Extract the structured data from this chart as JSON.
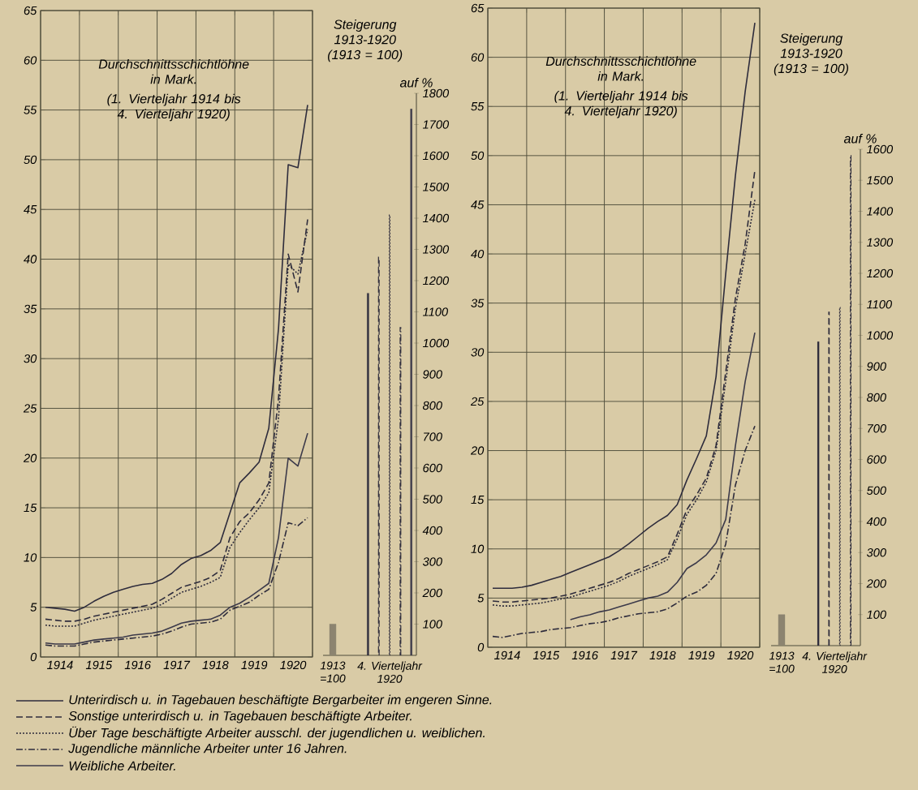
{
  "chart_data": [
    {
      "type": "line",
      "title": "Durchschnittsschichtlöhne in Mark.",
      "subtitle": "(1. Vierteljahr 1914 bis 4. Vierteljahr 1920)",
      "x": [
        1914.125,
        1914.375,
        1914.625,
        1914.875,
        1915.125,
        1915.375,
        1915.625,
        1915.875,
        1916.125,
        1916.375,
        1916.625,
        1916.875,
        1917.125,
        1917.375,
        1917.625,
        1917.875,
        1918.125,
        1918.375,
        1918.625,
        1918.875,
        1919.125,
        1919.375,
        1919.625,
        1919.875,
        1920.125,
        1920.375,
        1920.625,
        1920.875
      ],
      "xlim": [
        1914,
        1921
      ],
      "ylim": [
        0,
        65
      ],
      "xticks": [
        {
          "value": 1914,
          "label": null
        },
        {
          "value": 1915,
          "label": null
        },
        {
          "value": 1916,
          "label": null
        },
        {
          "value": 1917,
          "label": null
        },
        {
          "value": 1918,
          "label": null
        },
        {
          "value": 1919,
          "label": null
        },
        {
          "value": 1920,
          "label": null
        },
        {
          "value": 1921,
          "label": null
        },
        {
          "value": 1914.5,
          "label": "1914"
        },
        {
          "value": 1915.5,
          "label": "1915"
        },
        {
          "value": 1916.5,
          "label": "1916"
        },
        {
          "value": 1917.5,
          "label": "1917"
        },
        {
          "value": 1918.5,
          "label": "1918"
        },
        {
          "value": 1919.5,
          "label": "1919"
        },
        {
          "value": 1920.5,
          "label": "1920"
        }
      ],
      "yticks": [
        0,
        5,
        10,
        15,
        20,
        25,
        30,
        35,
        40,
        45,
        50,
        55,
        60,
        65
      ],
      "grid": true,
      "legend": "bottom",
      "series": [
        {
          "name": "Unterirdisch u. in Tagebauen beschäftigte Bergarbeiter im engeren Sinne.",
          "color": "#2e2c3c",
          "line_style": "solid",
          "values": [
            5.0,
            4.9,
            4.8,
            4.6,
            5.0,
            5.6,
            6.1,
            6.5,
            6.8,
            7.1,
            7.3,
            7.4,
            7.8,
            8.4,
            9.3,
            9.9,
            10.2,
            10.7,
            11.5,
            14.5,
            17.5,
            18.5,
            19.6,
            23.0,
            33.0,
            49.5,
            49.2,
            55.5
          ]
        },
        {
          "name": "Sonstige unterirdisch u. in Tagebauen beschäftigte Arbeiter.",
          "color": "#2e2c3c",
          "line_style": "dashed",
          "values": [
            3.8,
            3.7,
            3.6,
            3.6,
            3.8,
            4.1,
            4.3,
            4.5,
            4.7,
            4.9,
            5.1,
            5.3,
            5.8,
            6.4,
            7.0,
            7.3,
            7.6,
            8.0,
            8.7,
            12.0,
            13.6,
            14.5,
            15.8,
            17.5,
            26.0,
            40.5,
            36.7,
            44.0
          ]
        },
        {
          "name": "Über Tage beschäftigte Arbeiter ausschl. der jugendlichen u. weiblichen.",
          "color": "#2e2c3c",
          "line_style": "dotted",
          "values": [
            3.2,
            3.1,
            3.1,
            3.1,
            3.4,
            3.7,
            3.9,
            4.1,
            4.3,
            4.5,
            4.7,
            4.9,
            5.3,
            5.9,
            6.5,
            6.8,
            7.1,
            7.5,
            8.0,
            11.0,
            12.5,
            13.8,
            15.0,
            16.5,
            24.0,
            39.5,
            38.5,
            43.0
          ]
        },
        {
          "name": "Jugendliche männliche Arbeiter unter 16 Jahren.",
          "color": "#2e2c3c",
          "line_style": "dashdot",
          "values": [
            1.2,
            1.1,
            1.1,
            1.1,
            1.3,
            1.5,
            1.6,
            1.7,
            1.8,
            1.9,
            2.0,
            2.1,
            2.3,
            2.6,
            3.0,
            3.3,
            3.4,
            3.5,
            3.8,
            4.7,
            5.1,
            5.5,
            6.2,
            6.8,
            9.5,
            13.5,
            13.2,
            14.0
          ]
        },
        {
          "name": "Weibliche Arbeiter.",
          "color": "#3c3a4a",
          "line_style": "solid",
          "values": [
            1.4,
            1.3,
            1.3,
            1.3,
            1.5,
            1.7,
            1.8,
            1.9,
            2.0,
            2.2,
            2.3,
            2.4,
            2.6,
            3.0,
            3.4,
            3.6,
            3.7,
            3.8,
            4.2,
            5.0,
            5.4,
            6.0,
            6.7,
            7.4,
            12.0,
            20.0,
            19.2,
            22.5
          ]
        }
      ]
    },
    {
      "type": "bar",
      "title": "Steigerung 1913-1920 (1913 = 100)",
      "ylabel": "auf %",
      "categories": [
        "1913 =100",
        "4. Vierteljahr 1920"
      ],
      "ylim": [
        0,
        1800
      ],
      "yticks": [
        100,
        200,
        300,
        400,
        500,
        600,
        700,
        800,
        900,
        1000,
        1100,
        1200,
        1300,
        1400,
        1500,
        1600,
        1700,
        1800
      ],
      "series": [
        {
          "color": "#8c8470",
          "values": [
            100,
            null
          ]
        },
        {
          "color": "#2e2c3c",
          "line_style": "solid",
          "values": [
            null,
            1160
          ]
        },
        {
          "color": "#2e2c3c",
          "line_style": "dashed",
          "values": [
            null,
            1275
          ]
        },
        {
          "color": "#2e2c3c",
          "line_style": "dotted",
          "values": [
            null,
            1410
          ]
        },
        {
          "color": "#2e2c3c",
          "line_style": "dashdot",
          "values": [
            null,
            1050
          ]
        },
        {
          "color": "#3c3a4a",
          "line_style": "solid",
          "values": [
            null,
            1750
          ]
        }
      ]
    },
    {
      "type": "line",
      "title": "Durchschnittsschichtlöhne in Mark.",
      "subtitle": "(1. Vierteljahr 1914 bis 4. Vierteljahr 1920)",
      "x": [
        1914.125,
        1914.375,
        1914.625,
        1914.875,
        1915.125,
        1915.375,
        1915.625,
        1915.875,
        1916.125,
        1916.375,
        1916.625,
        1916.875,
        1917.125,
        1917.375,
        1917.625,
        1917.875,
        1918.125,
        1918.375,
        1918.625,
        1918.875,
        1919.125,
        1919.375,
        1919.625,
        1919.875,
        1920.125,
        1920.375,
        1920.625,
        1920.875
      ],
      "xlim": [
        1914,
        1921
      ],
      "ylim": [
        0,
        65
      ],
      "xticks": [
        {
          "value": 1914,
          "label": null
        },
        {
          "value": 1915,
          "label": null
        },
        {
          "value": 1916,
          "label": null
        },
        {
          "value": 1917,
          "label": null
        },
        {
          "value": 1918,
          "label": null
        },
        {
          "value": 1919,
          "label": null
        },
        {
          "value": 1920,
          "label": null
        },
        {
          "value": 1921,
          "label": null
        },
        {
          "value": 1914.5,
          "label": "1914"
        },
        {
          "value": 1915.5,
          "label": "1915"
        },
        {
          "value": 1916.5,
          "label": "1916"
        },
        {
          "value": 1917.5,
          "label": "1917"
        },
        {
          "value": 1918.5,
          "label": "1918"
        },
        {
          "value": 1919.5,
          "label": "1919"
        },
        {
          "value": 1920.5,
          "label": "1920"
        }
      ],
      "yticks": [
        0,
        5,
        10,
        15,
        20,
        25,
        30,
        35,
        40,
        45,
        50,
        55,
        60,
        65
      ],
      "grid": true,
      "series": [
        {
          "color": "#2e2c3c",
          "line_style": "solid",
          "values": [
            6.0,
            6.0,
            6.0,
            6.1,
            6.3,
            6.6,
            6.9,
            7.2,
            7.6,
            8.0,
            8.4,
            8.8,
            9.2,
            9.8,
            10.5,
            11.3,
            12.1,
            12.8,
            13.4,
            14.5,
            17.0,
            19.2,
            21.5,
            27.5,
            38.0,
            48.0,
            56.5,
            63.5
          ]
        },
        {
          "color": "#2e2c3c",
          "line_style": "dashed",
          "values": [
            4.7,
            4.6,
            4.6,
            4.7,
            4.8,
            4.9,
            5.0,
            5.2,
            5.4,
            5.7,
            6.0,
            6.3,
            6.6,
            7.0,
            7.5,
            7.9,
            8.3,
            8.7,
            9.2,
            11.5,
            14.0,
            15.5,
            17.2,
            20.5,
            28.0,
            35.5,
            41.0,
            48.5
          ]
        },
        {
          "color": "#2e2c3c",
          "line_style": "dotted",
          "values": [
            4.3,
            4.2,
            4.2,
            4.3,
            4.4,
            4.5,
            4.7,
            4.9,
            5.1,
            5.4,
            5.7,
            6.0,
            6.3,
            6.7,
            7.2,
            7.6,
            8.0,
            8.4,
            8.9,
            11.0,
            13.5,
            15.0,
            16.8,
            20.0,
            27.0,
            34.5,
            40.0,
            45.5
          ]
        },
        {
          "color": "#2e2c3c",
          "line_style": "dashdot",
          "values": [
            1.1,
            1.0,
            1.2,
            1.4,
            1.5,
            1.6,
            1.8,
            1.9,
            2.0,
            2.2,
            2.4,
            2.5,
            2.7,
            3.0,
            3.2,
            3.4,
            3.5,
            3.6,
            3.9,
            4.5,
            5.2,
            5.6,
            6.3,
            7.5,
            10.5,
            16.5,
            20.0,
            22.5
          ]
        },
        {
          "color": "#3c3a4a",
          "line_style": "solid",
          "values": [
            null,
            null,
            null,
            null,
            null,
            null,
            null,
            null,
            2.8,
            3.1,
            3.3,
            3.6,
            3.8,
            4.1,
            4.4,
            4.7,
            5.0,
            5.2,
            5.6,
            6.6,
            8.0,
            8.6,
            9.4,
            10.6,
            13.0,
            20.5,
            27.0,
            32.0
          ]
        }
      ]
    },
    {
      "type": "bar",
      "title": "Steigerung 1913-1920 (1913 = 100)",
      "ylabel": "auf %",
      "categories": [
        "1913 =100",
        "4. Vierteljahr 1920"
      ],
      "ylim": [
        0,
        1600
      ],
      "yticks": [
        100,
        200,
        300,
        400,
        500,
        600,
        700,
        800,
        900,
        1000,
        1100,
        1200,
        1300,
        1400,
        1500,
        1600
      ],
      "series": [
        {
          "color": "#8c8470",
          "values": [
            100,
            null
          ]
        },
        {
          "color": "#2e2c3c",
          "line_style": "solid",
          "values": [
            null,
            980
          ]
        },
        {
          "color": "#2e2c3c",
          "line_style": "dashed",
          "values": [
            null,
            1075
          ]
        },
        {
          "color": "#2e2c3c",
          "line_style": "dotted",
          "values": [
            null,
            1090
          ]
        },
        {
          "color": "#2e2c3c",
          "line_style": "dashdot",
          "values": [
            null,
            1580
          ]
        }
      ]
    }
  ]
}
